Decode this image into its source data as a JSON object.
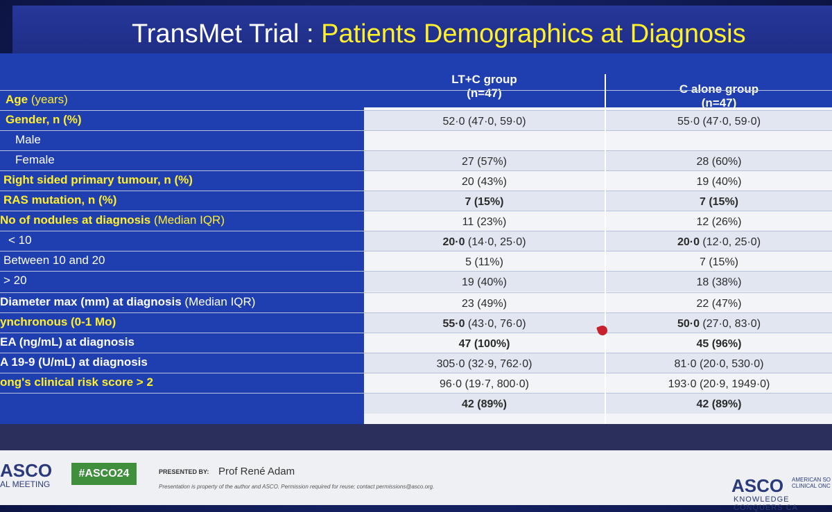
{
  "title": {
    "part1": "TransMet Trial : ",
    "part2": "Patients Demographics at Diagnosis"
  },
  "table": {
    "columns": [
      {
        "name": "LT+C group",
        "n": "(n=47)"
      },
      {
        "name": "C alone group",
        "n": "(n=47)"
      }
    ],
    "rows": [
      {
        "label": "Age",
        "label_suffix": " (years)",
        "style": "yellow"
      },
      {
        "label": "Gender, n (%)",
        "v1": "52·0 (47·0, 59·0)",
        "v2": "55·0 (47·0, 59·0)",
        "style": "yellow"
      },
      {
        "label": "Male",
        "style": "white"
      },
      {
        "label": "Female",
        "v1": "27 (57%)",
        "v2": "28 (60%)",
        "style": "white"
      },
      {
        "label": "Right sided primary tumour, n (%)",
        "v1": "20 (43%)",
        "v2": "19 (40%)",
        "style": "yellow"
      },
      {
        "label": "RAS mutation, n (%)",
        "v1": "7 (15%)",
        "v2": "7 (15%)",
        "style": "yellow",
        "bold": true
      },
      {
        "label": "No of nodules at diagnosis",
        "label_suffix": " (Median IQR)",
        "v1": "11 (23%)",
        "v2": "12 (26%)",
        "style": "yellow"
      },
      {
        "label": "< 10",
        "v1_bold": "20·0",
        "v1": " (14·0, 25·0)",
        "v2_bold": "20·0",
        "v2": " (12·0, 25·0)",
        "style": "white"
      },
      {
        "label": "Between  10 and 20",
        "v1": "5 (11%)",
        "v2": "7 (15%)",
        "style": "white"
      },
      {
        "label": "> 20",
        "v1": "19 (40%)",
        "v2": "18 (38%)",
        "style": "white"
      },
      {
        "label": "Diameter max (mm) at diagnosis",
        "label_suffix": " (Median IQR)",
        "v1": "23 (49%)",
        "v2": "22 (47%)",
        "style": "white-bold"
      },
      {
        "label": "ynchronous (0-1 Mo)",
        "v1_bold": "55·0",
        "v1": " (43·0, 76·0)",
        "v2_bold": "50·0",
        "v2": " (27·0, 83·0)",
        "style": "yellow"
      },
      {
        "label": "EA  (ng/mL) at diagnosis",
        "v1": "47 (100%)",
        "v2": "45 (96%)",
        "style": "white-bold",
        "bold": true
      },
      {
        "label": "A 19-9 (U/mL) at diagnosis",
        "v1": "305·0 (32·9, 762·0)",
        "v2": "81·0 (20·0, 530·0)",
        "style": "white-bold"
      },
      {
        "label": "ong's clinical risk score > 2",
        "v1": "96·0 (19·7, 800·0)",
        "v2": "193·0 (20·9, 1949·0)",
        "style": "yellow"
      },
      {
        "label": "",
        "v1": "42 (89%)",
        "v2": "42 (89%)",
        "style": "white",
        "bold": true
      }
    ]
  },
  "footer": {
    "asco_left": "ASCO",
    "meeting": "AL MEETING",
    "hashtag": "#ASCO24",
    "presented_by": "PRESENTED BY:",
    "presenter": "Prof René Adam",
    "notice": "Presentation is property of the author and ASCO. Permission required for reuse; contact permissions@asco.org.",
    "asco_right": "ASCO",
    "asco_right_sub": "AMERICAN SO CLINICAL ONC",
    "tagline": "KNOWLEDGE CONQUERS CA"
  }
}
